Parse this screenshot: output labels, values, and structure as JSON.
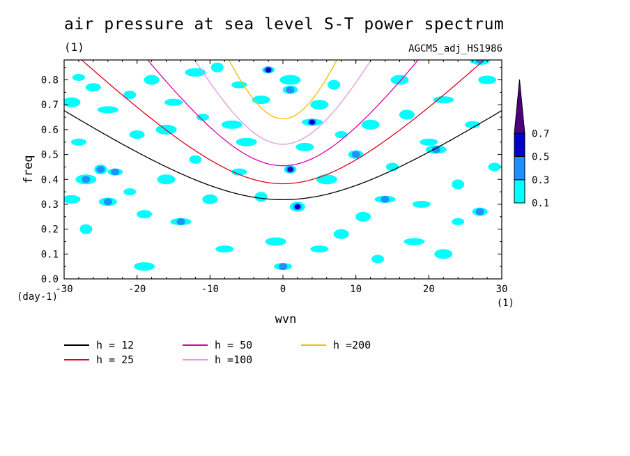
{
  "chart_data": {
    "type": "heatmap",
    "title": "air pressure at sea level S-T power spectrum",
    "unit_left": "(1)",
    "subtitle": "AGCM5_adj_HS1986",
    "xlabel": "wvn",
    "ylabel": "freq",
    "x_unit": "(1)",
    "y_unit": "(day-1)",
    "xlim": [
      -30,
      30
    ],
    "ylim": [
      0.0,
      0.88
    ],
    "x_ticks": [
      "-30",
      "-20",
      "-10",
      "0",
      "10",
      "20",
      "30"
    ],
    "y_ticks": [
      "0.0",
      "0.1",
      "0.2",
      "0.3",
      "0.4",
      "0.5",
      "0.6",
      "0.7",
      "0.8"
    ],
    "colorbar": {
      "levels": [
        "0.1",
        "0.3",
        "0.5",
        "0.7"
      ],
      "colors": [
        "#00ffff",
        "#1e90ff",
        "#0000cd",
        "#4b0082"
      ]
    },
    "dispersion_curves": [
      {
        "name": "h = 12",
        "color": "#000000",
        "h": 12
      },
      {
        "name": "h = 25",
        "color": "#e0001b",
        "h": 25
      },
      {
        "name": "h = 50",
        "color": "#dd00aa",
        "h": 50
      },
      {
        "name": "h =100",
        "color": "#dd99dd",
        "h": 100
      },
      {
        "name": "h =200",
        "color": "#f0c000",
        "h": 200
      }
    ],
    "blobs": [
      {
        "x": -28,
        "y": 0.81,
        "v": 0.1
      },
      {
        "x": -26,
        "y": 0.77,
        "v": 0.1
      },
      {
        "x": -29,
        "y": 0.71,
        "v": 0.1
      },
      {
        "x": -24,
        "y": 0.68,
        "v": 0.1
      },
      {
        "x": -21,
        "y": 0.74,
        "v": 0.1
      },
      {
        "x": -18,
        "y": 0.8,
        "v": 0.1
      },
      {
        "x": -15,
        "y": 0.71,
        "v": 0.1
      },
      {
        "x": -12,
        "y": 0.83,
        "v": 0.1
      },
      {
        "x": -9,
        "y": 0.85,
        "v": 0.1
      },
      {
        "x": -6,
        "y": 0.78,
        "v": 0.1
      },
      {
        "x": -3,
        "y": 0.72,
        "v": 0.1
      },
      {
        "x": 1,
        "y": 0.8,
        "v": 0.1
      },
      {
        "x": -2,
        "y": 0.84,
        "v": 0.5
      },
      {
        "x": 1,
        "y": 0.76,
        "v": 0.3
      },
      {
        "x": 5,
        "y": 0.7,
        "v": 0.1
      },
      {
        "x": 4,
        "y": 0.63,
        "v": 0.5
      },
      {
        "x": 1,
        "y": 0.44,
        "v": 0.7
      },
      {
        "x": 2,
        "y": 0.29,
        "v": 0.5
      },
      {
        "x": 0,
        "y": 0.05,
        "v": 0.3
      },
      {
        "x": -1,
        "y": 0.15,
        "v": 0.1
      },
      {
        "x": -25,
        "y": 0.44,
        "v": 0.3
      },
      {
        "x": -23,
        "y": 0.43,
        "v": 0.3
      },
      {
        "x": -24,
        "y": 0.31,
        "v": 0.3
      },
      {
        "x": -27,
        "y": 0.4,
        "v": 0.3
      },
      {
        "x": -21,
        "y": 0.35,
        "v": 0.1
      },
      {
        "x": -19,
        "y": 0.26,
        "v": 0.1
      },
      {
        "x": -16,
        "y": 0.4,
        "v": 0.1
      },
      {
        "x": -14,
        "y": 0.23,
        "v": 0.3
      },
      {
        "x": -12,
        "y": 0.48,
        "v": 0.1
      },
      {
        "x": -10,
        "y": 0.32,
        "v": 0.1
      },
      {
        "x": -8,
        "y": 0.12,
        "v": 0.1
      },
      {
        "x": -5,
        "y": 0.55,
        "v": 0.1
      },
      {
        "x": -3,
        "y": 0.33,
        "v": 0.1
      },
      {
        "x": -6,
        "y": 0.43,
        "v": 0.1
      },
      {
        "x": 3,
        "y": 0.53,
        "v": 0.1
      },
      {
        "x": 6,
        "y": 0.4,
        "v": 0.1
      },
      {
        "x": 8,
        "y": 0.58,
        "v": 0.1
      },
      {
        "x": 10,
        "y": 0.5,
        "v": 0.3
      },
      {
        "x": 12,
        "y": 0.62,
        "v": 0.1
      },
      {
        "x": 14,
        "y": 0.32,
        "v": 0.3
      },
      {
        "x": 15,
        "y": 0.45,
        "v": 0.1
      },
      {
        "x": 17,
        "y": 0.66,
        "v": 0.1
      },
      {
        "x": 20,
        "y": 0.55,
        "v": 0.1
      },
      {
        "x": 21,
        "y": 0.52,
        "v": 0.3
      },
      {
        "x": 24,
        "y": 0.38,
        "v": 0.1
      },
      {
        "x": 26,
        "y": 0.62,
        "v": 0.1
      },
      {
        "x": 28,
        "y": 0.8,
        "v": 0.1
      },
      {
        "x": 27,
        "y": 0.88,
        "v": 0.3
      },
      {
        "x": 24,
        "y": 0.23,
        "v": 0.1
      },
      {
        "x": 27,
        "y": 0.27,
        "v": 0.3
      },
      {
        "x": 22,
        "y": 0.1,
        "v": 0.1
      },
      {
        "x": 18,
        "y": 0.15,
        "v": 0.1
      },
      {
        "x": 13,
        "y": 0.08,
        "v": 0.1
      },
      {
        "x": 8,
        "y": 0.18,
        "v": 0.1
      },
      {
        "x": 5,
        "y": 0.12,
        "v": 0.1
      },
      {
        "x": -19,
        "y": 0.05,
        "v": 0.1
      },
      {
        "x": -27,
        "y": 0.2,
        "v": 0.1
      },
      {
        "x": -28,
        "y": 0.55,
        "v": 0.1
      },
      {
        "x": -29,
        "y": 0.32,
        "v": 0.1
      },
      {
        "x": -16,
        "y": 0.6,
        "v": 0.1
      },
      {
        "x": -11,
        "y": 0.65,
        "v": 0.1
      },
      {
        "x": -20,
        "y": 0.58,
        "v": 0.1
      },
      {
        "x": 16,
        "y": 0.8,
        "v": 0.1
      },
      {
        "x": 22,
        "y": 0.72,
        "v": 0.1
      },
      {
        "x": 29,
        "y": 0.45,
        "v": 0.1
      },
      {
        "x": 11,
        "y": 0.25,
        "v": 0.1
      },
      {
        "x": 19,
        "y": 0.3,
        "v": 0.1
      },
      {
        "x": -7,
        "y": 0.62,
        "v": 0.1
      },
      {
        "x": 7,
        "y": 0.78,
        "v": 0.1
      }
    ]
  },
  "legend": {
    "items": [
      {
        "label": "h = 12",
        "color": "#000000"
      },
      {
        "label": "h = 25",
        "color": "#e0001b"
      },
      {
        "label": "h = 50",
        "color": "#dd00aa"
      },
      {
        "label": "h =100",
        "color": "#dd99dd"
      },
      {
        "label": "h =200",
        "color": "#f0c000"
      }
    ]
  }
}
